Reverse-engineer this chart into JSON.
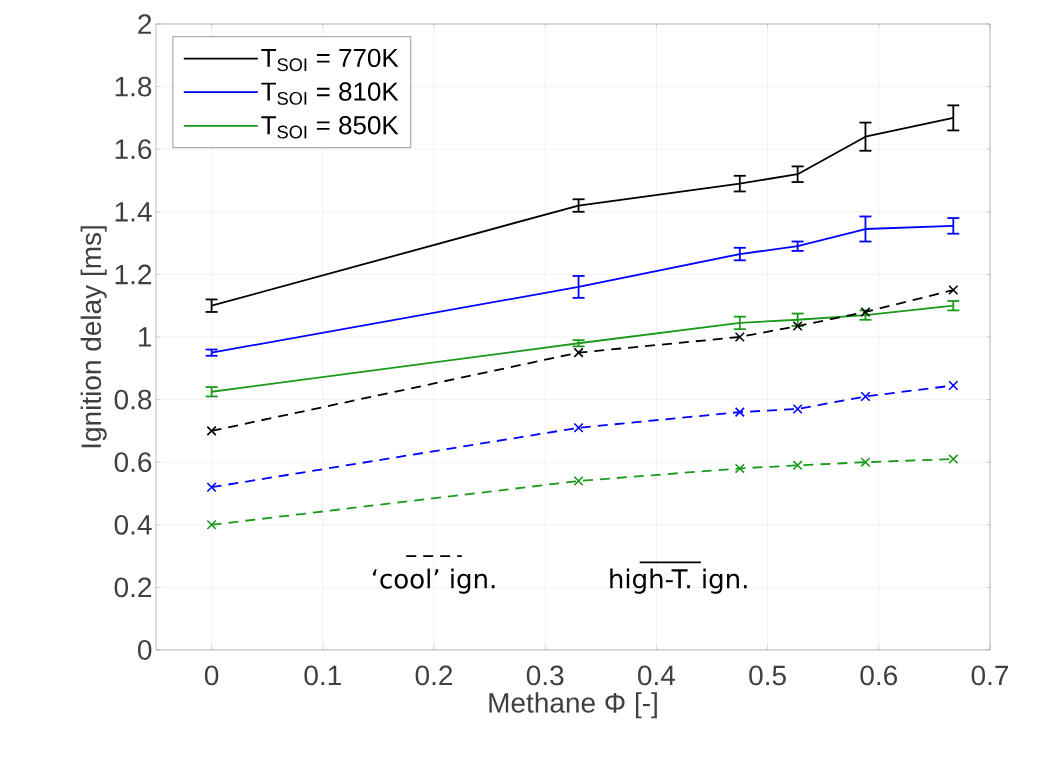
{
  "chart_data": {
    "type": "line",
    "xlabel": "Methane Φ [-]",
    "ylabel": "Ignition delay [ms]",
    "x": [
      0,
      0.33,
      0.475,
      0.527,
      0.588,
      0.667
    ],
    "xlim": [
      -0.05,
      0.7
    ],
    "ylim": [
      0,
      2
    ],
    "xticks": [
      0,
      0.1,
      0.2,
      0.3,
      0.4,
      0.5,
      0.6,
      0.7
    ],
    "yticks": [
      0,
      0.2,
      0.4,
      0.6,
      0.8,
      1,
      1.2,
      1.4,
      1.6,
      1.8,
      2
    ],
    "grid": true,
    "legend": "top left",
    "series": [
      {
        "name": "T$_{SOI}$ = 770K",
        "color": "#000000",
        "line_style": "solid",
        "marker": "none",
        "values": [
          1.1,
          1.42,
          1.49,
          1.52,
          1.64,
          1.7
        ],
        "errors": [
          0.02,
          0.02,
          0.025,
          0.025,
          0.045,
          0.04
        ]
      },
      {
        "name": "T$_{SOI}$ = 810K",
        "color": "#0000ff",
        "line_style": "solid",
        "marker": "none",
        "values": [
          0.95,
          1.16,
          1.265,
          1.29,
          1.345,
          1.355
        ],
        "errors": [
          0.01,
          0.035,
          0.02,
          0.015,
          0.04,
          0.025
        ]
      },
      {
        "name": "T$_{SOI}$ = 850K",
        "color": "#1a9a1a",
        "line_style": "solid",
        "marker": "none",
        "values": [
          0.825,
          0.98,
          1.045,
          1.055,
          1.07,
          1.1
        ],
        "errors": [
          0.015,
          0.01,
          0.02,
          0.02,
          0.015,
          0.015
        ]
      },
      {
        "color": "#000000",
        "line_style": "dashed",
        "marker": "cross",
        "values": [
          0.7,
          0.95,
          1.0,
          1.035,
          1.08,
          1.15
        ]
      },
      {
        "color": "#0000ff",
        "line_style": "dashed",
        "marker": "cross",
        "values": [
          0.52,
          0.71,
          0.76,
          0.77,
          0.81,
          0.845
        ]
      },
      {
        "color": "#1a9a1a",
        "line_style": "dashed",
        "marker": "cross",
        "values": [
          0.4,
          0.54,
          0.58,
          0.59,
          0.6,
          0.61
        ]
      }
    ],
    "annotations": [
      "‘cool’ ign.",
      "high-T. ign."
    ]
  }
}
